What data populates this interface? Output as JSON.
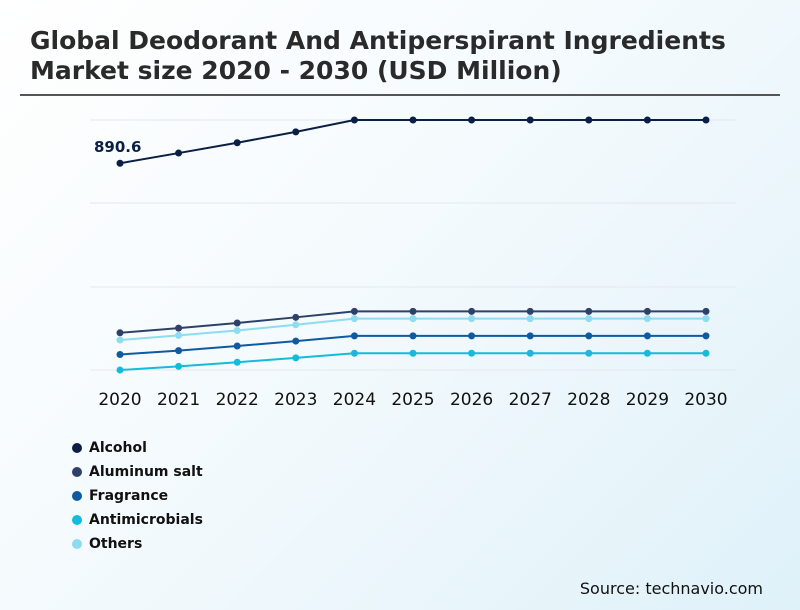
{
  "title": "Global Deodorant And Antiperspirant Ingredients Market size 2020 - 2030 (USD Million)",
  "source": "Source: technavio.com",
  "chart_data": {
    "type": "line",
    "title": "Global Deodorant And Antiperspirant Ingredients Market size 2020 - 2030 (USD Million)",
    "xlabel": "",
    "ylabel": "USD Million",
    "categories": [
      "2020",
      "2021",
      "2022",
      "2023",
      "2024",
      "2025",
      "2026",
      "2027",
      "2028",
      "2029",
      "2030"
    ],
    "ylim": [
      0,
      1200
    ],
    "grid": true,
    "legend_position": "bottom-left",
    "annotations": [
      {
        "series": "Alcohol",
        "category": "2020",
        "text": "890.6"
      }
    ],
    "series": [
      {
        "name": "Alcohol",
        "color": "#0b1f45",
        "values": [
          890.6,
          930,
          970,
          1012,
          1058,
          1058,
          1058,
          1058,
          1058,
          1058,
          1058
        ]
      },
      {
        "name": "Aluminum salt",
        "color": "#2d4169",
        "values": [
          234,
          252,
          272,
          294,
          317,
          317,
          317,
          317,
          317,
          317,
          317
        ]
      },
      {
        "name": "Fragrance",
        "color": "#0f5aa0",
        "values": [
          150,
          165,
          183,
          202,
          222,
          222,
          222,
          222,
          222,
          222,
          222
        ]
      },
      {
        "name": "Antimicrobials",
        "color": "#14bcd9",
        "values": [
          90,
          104,
          120,
          137,
          155,
          155,
          155,
          155,
          155,
          155,
          155
        ]
      },
      {
        "name": "Others",
        "color": "#8ddcf0",
        "values": [
          206,
          224,
          243,
          265,
          289,
          289,
          289,
          289,
          289,
          289,
          289
        ]
      }
    ]
  }
}
